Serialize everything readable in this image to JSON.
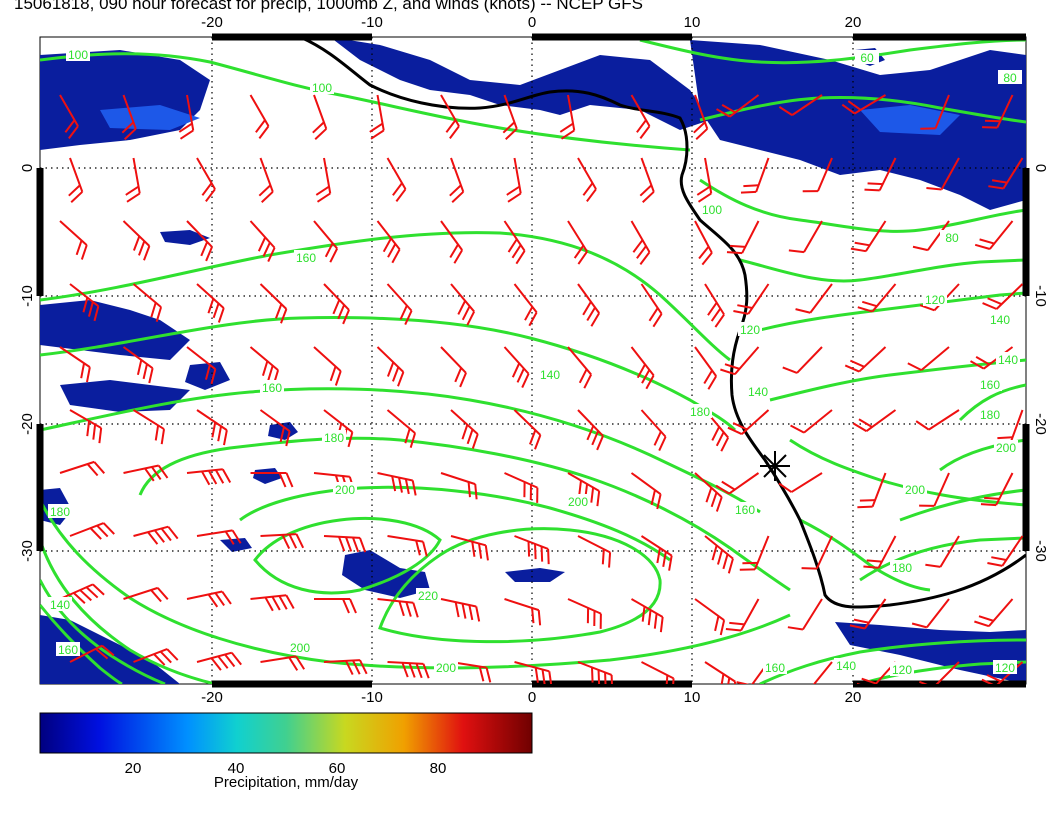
{
  "title": "15061818, 090 hour forecast for precip, 1000mb Z, and winds (knots) -- NCEP GFS",
  "axes": {
    "lon_ticks": [
      "-20",
      "-10",
      "0",
      "10",
      "20"
    ],
    "lat_ticks": [
      "0",
      "-10",
      "-20",
      "-30"
    ],
    "lon_range": [
      -31,
      30
    ],
    "lat_range": [
      -40,
      10
    ]
  },
  "contour_labels": [
    "100",
    "100",
    "60",
    "100",
    "80",
    "80",
    "120",
    "120",
    "140",
    "140",
    "160",
    "160",
    "180",
    "180",
    "200",
    "200",
    "200",
    "200",
    "220",
    "140",
    "180",
    "160",
    "140",
    "120",
    "160",
    "180",
    "160",
    "140",
    "160",
    "200",
    "180",
    "200",
    "120",
    "140"
  ],
  "colorbar": {
    "title": "Precipitation, mm/day",
    "ticks": [
      "20",
      "40",
      "60",
      "80"
    ],
    "range": [
      0,
      100
    ]
  },
  "colors": {
    "contour": "#2fe02f",
    "wind_barb": "#ee1010",
    "coastline": "#000000",
    "precip_low": "#0a1e9e"
  },
  "marker": "station-star-icon"
}
